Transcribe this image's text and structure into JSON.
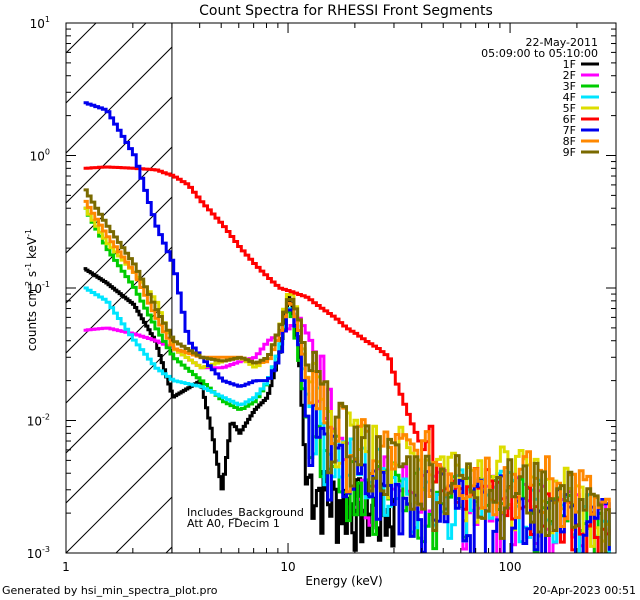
{
  "chart_data": {
    "type": "line",
    "title": "Count Spectra for RHESSI Front Segments",
    "xlabel": "Energy (keV)",
    "ylabel": "counts cm-2 s-1 keV-1",
    "xscale": "log",
    "yscale": "log",
    "xlim": [
      1,
      300
    ],
    "ylim": [
      0.001,
      10
    ],
    "x_ticks": [
      {
        "value": 1,
        "label": "1"
      },
      {
        "value": 10,
        "label": "10"
      },
      {
        "value": 100,
        "label": "100"
      }
    ],
    "y_ticks": [
      {
        "value": 10,
        "base": "10",
        "exp": "1"
      },
      {
        "value": 1,
        "base": "10",
        "exp": "0"
      },
      {
        "value": 0.1,
        "base": "10",
        "exp": "-1"
      },
      {
        "value": 0.01,
        "base": "10",
        "exp": "-2"
      },
      {
        "value": 0.001,
        "base": "10",
        "exp": "-3"
      }
    ],
    "date": "22-May-2011",
    "time_range": "05:09:00 to 05:10:00",
    "hatch_region": {
      "x_min": 1,
      "x_max": 3
    },
    "annotations": [
      "Includes_Background",
      "Att A0, FDecim 1"
    ],
    "footer_left": "Generated by hsi_min_spectra_plot.pro",
    "footer_right": "20-Apr-2023 00:51",
    "series": [
      {
        "name": "1F",
        "color": "#000000",
        "points": [
          [
            1.2,
            0.14
          ],
          [
            1.5,
            0.11
          ],
          [
            2,
            0.075
          ],
          [
            2.5,
            0.04
          ],
          [
            3,
            0.015
          ],
          [
            4,
            0.02
          ],
          [
            4.5,
            0.008
          ],
          [
            5,
            0.003
          ],
          [
            5.5,
            0.01
          ],
          [
            6,
            0.008
          ],
          [
            7,
            0.012
          ],
          [
            8,
            0.015
          ],
          [
            9,
            0.03
          ],
          [
            10,
            0.09
          ],
          [
            11,
            0.04
          ],
          [
            12,
            0.003
          ],
          [
            15,
            0.002
          ],
          [
            20,
            0.0018
          ],
          [
            30,
            0.0015
          ]
        ]
      },
      {
        "name": "2F",
        "color": "#ff00ff",
        "points": [
          [
            1.2,
            0.048
          ],
          [
            1.5,
            0.05
          ],
          [
            2,
            0.045
          ],
          [
            2.5,
            0.04
          ],
          [
            3,
            0.035
          ],
          [
            4,
            0.025
          ],
          [
            5,
            0.025
          ],
          [
            6,
            0.028
          ],
          [
            7,
            0.03
          ],
          [
            8,
            0.04
          ],
          [
            9,
            0.045
          ],
          [
            10,
            0.05
          ],
          [
            11,
            0.06
          ],
          [
            12,
            0.045
          ],
          [
            13,
            0.03
          ],
          [
            14,
            0.015
          ],
          [
            16,
            0.006
          ],
          [
            20,
            0.003
          ],
          [
            30,
            0.0025
          ],
          [
            60,
            0.002
          ],
          [
            100,
            0.0018
          ],
          [
            200,
            0.0015
          ],
          [
            280,
            0.0012
          ]
        ]
      },
      {
        "name": "3F",
        "color": "#00cc00",
        "points": [
          [
            1.2,
            0.4
          ],
          [
            1.5,
            0.2
          ],
          [
            2,
            0.1
          ],
          [
            2.5,
            0.05
          ],
          [
            3,
            0.03
          ],
          [
            4,
            0.02
          ],
          [
            5,
            0.014
          ],
          [
            6,
            0.012
          ],
          [
            7,
            0.014
          ],
          [
            8,
            0.02
          ],
          [
            9,
            0.035
          ],
          [
            10,
            0.075
          ],
          [
            11,
            0.03
          ],
          [
            12,
            0.01
          ],
          [
            15,
            0.005
          ],
          [
            20,
            0.003
          ],
          [
            40,
            0.002
          ],
          [
            100,
            0.0018
          ],
          [
            280,
            0.0012
          ]
        ]
      },
      {
        "name": "4F",
        "color": "#00e5ff",
        "points": [
          [
            1.2,
            0.1
          ],
          [
            1.5,
            0.08
          ],
          [
            2,
            0.04
          ],
          [
            2.5,
            0.025
          ],
          [
            3,
            0.02
          ],
          [
            4,
            0.018
          ],
          [
            5,
            0.015
          ],
          [
            6,
            0.013
          ],
          [
            7,
            0.015
          ],
          [
            8,
            0.02
          ],
          [
            9,
            0.035
          ],
          [
            10,
            0.08
          ],
          [
            11,
            0.04
          ],
          [
            12,
            0.015
          ],
          [
            15,
            0.005
          ],
          [
            20,
            0.0035
          ],
          [
            40,
            0.0025
          ],
          [
            100,
            0.002
          ],
          [
            280,
            0.0012
          ]
        ]
      },
      {
        "name": "5F",
        "color": "#dddd00",
        "points": [
          [
            1.2,
            0.4
          ],
          [
            1.5,
            0.22
          ],
          [
            2,
            0.13
          ],
          [
            2.5,
            0.08
          ],
          [
            3,
            0.035
          ],
          [
            4,
            0.025
          ],
          [
            5,
            0.028
          ],
          [
            6,
            0.03
          ],
          [
            7,
            0.025
          ],
          [
            8,
            0.03
          ],
          [
            9,
            0.05
          ],
          [
            10,
            0.1
          ],
          [
            11,
            0.06
          ],
          [
            12,
            0.02
          ],
          [
            15,
            0.008
          ],
          [
            20,
            0.005
          ],
          [
            40,
            0.004
          ],
          [
            100,
            0.003
          ],
          [
            200,
            0.002
          ],
          [
            280,
            0.0012
          ]
        ]
      },
      {
        "name": "6F",
        "color": "#ff0000",
        "points": [
          [
            1.2,
            0.8
          ],
          [
            1.5,
            0.82
          ],
          [
            2,
            0.8
          ],
          [
            2.5,
            0.78
          ],
          [
            3,
            0.7
          ],
          [
            3.5,
            0.6
          ],
          [
            4,
            0.45
          ],
          [
            5,
            0.3
          ],
          [
            6,
            0.2
          ],
          [
            7,
            0.15
          ],
          [
            8,
            0.12
          ],
          [
            9,
            0.1
          ],
          [
            10,
            0.095
          ],
          [
            12,
            0.085
          ],
          [
            14,
            0.07
          ],
          [
            16,
            0.06
          ],
          [
            18,
            0.05
          ],
          [
            20,
            0.045
          ],
          [
            22,
            0.04
          ],
          [
            25,
            0.035
          ],
          [
            28,
            0.03
          ],
          [
            30,
            0.02
          ],
          [
            35,
            0.01
          ],
          [
            40,
            0.006
          ],
          [
            50,
            0.004
          ],
          [
            60,
            0.003
          ],
          [
            80,
            0.0025
          ],
          [
            100,
            0.002
          ],
          [
            150,
            0.0018
          ],
          [
            200,
            0.0015
          ],
          [
            280,
            0.0012
          ]
        ]
      },
      {
        "name": "7F",
        "color": "#0000ee",
        "points": [
          [
            1.2,
            2.5
          ],
          [
            1.5,
            2.2
          ],
          [
            2,
            1
          ],
          [
            2.5,
            0.3
          ],
          [
            3,
            0.15
          ],
          [
            3.5,
            0.04
          ],
          [
            4,
            0.03
          ],
          [
            5,
            0.02
          ],
          [
            6,
            0.018
          ],
          [
            7,
            0.02
          ],
          [
            8,
            0.02
          ],
          [
            9,
            0.03
          ],
          [
            10,
            0.08
          ],
          [
            11,
            0.04
          ],
          [
            12,
            0.01
          ],
          [
            15,
            0.004
          ],
          [
            20,
            0.0025
          ],
          [
            40,
            0.002
          ],
          [
            100,
            0.0018
          ],
          [
            280,
            0.0012
          ]
        ]
      },
      {
        "name": "8F",
        "color": "#ff8800",
        "points": [
          [
            1.2,
            0.45
          ],
          [
            1.5,
            0.25
          ],
          [
            2,
            0.13
          ],
          [
            2.5,
            0.06
          ],
          [
            3,
            0.035
          ],
          [
            4,
            0.03
          ],
          [
            5,
            0.03
          ],
          [
            6,
            0.03
          ],
          [
            7,
            0.027
          ],
          [
            8,
            0.028
          ],
          [
            9,
            0.045
          ],
          [
            10,
            0.085
          ],
          [
            11,
            0.05
          ],
          [
            12,
            0.02
          ],
          [
            15,
            0.008
          ],
          [
            20,
            0.005
          ],
          [
            40,
            0.004
          ],
          [
            100,
            0.003
          ],
          [
            200,
            0.0025
          ],
          [
            280,
            0.0012
          ]
        ]
      },
      {
        "name": "9F",
        "color": "#7a6a00",
        "points": [
          [
            1.2,
            0.55
          ],
          [
            1.5,
            0.3
          ],
          [
            2,
            0.15
          ],
          [
            2.5,
            0.07
          ],
          [
            3,
            0.04
          ],
          [
            4,
            0.03
          ],
          [
            5,
            0.028
          ],
          [
            6,
            0.03
          ],
          [
            7,
            0.027
          ],
          [
            8,
            0.03
          ],
          [
            9,
            0.05
          ],
          [
            10,
            0.09
          ],
          [
            11,
            0.06
          ],
          [
            12,
            0.025
          ],
          [
            15,
            0.008
          ],
          [
            20,
            0.005
          ],
          [
            40,
            0.003
          ],
          [
            100,
            0.0025
          ],
          [
            200,
            0.002
          ],
          [
            280,
            0.0012
          ]
        ]
      }
    ]
  }
}
